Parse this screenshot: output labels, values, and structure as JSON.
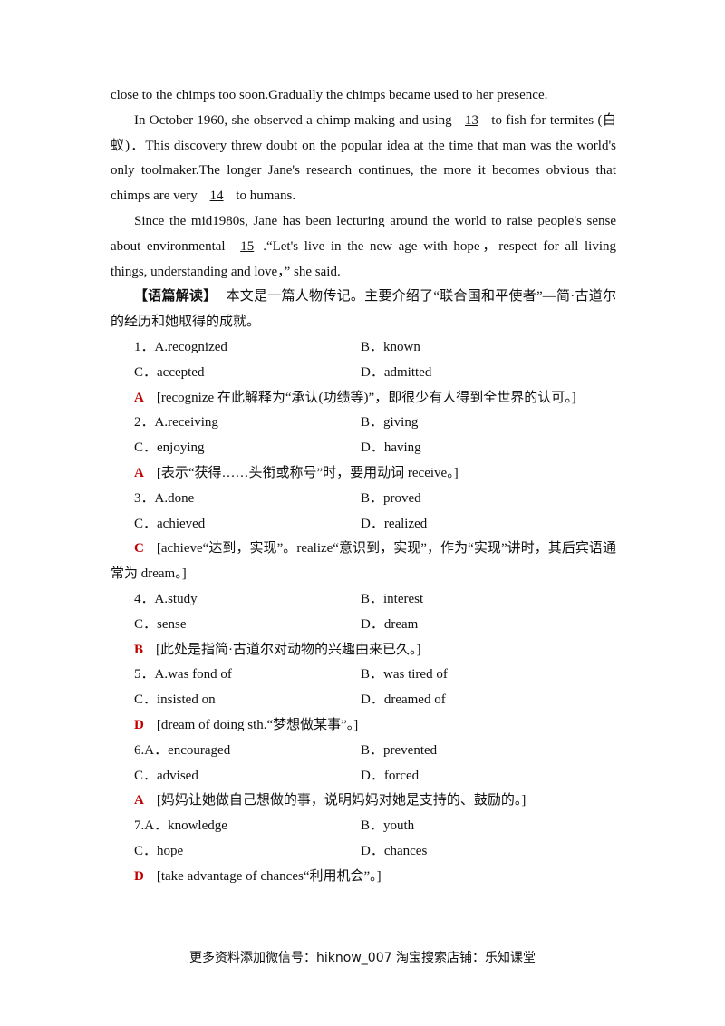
{
  "passage": [
    {
      "parts": [
        "close to the chimps too soon.Gradually the chimps became used to her presence."
      ]
    },
    {
      "parts": [
        "In October 1960, she observed a chimp making and using ",
        "13",
        " to fish for termites (白蚁)．This discovery threw doubt on the popular idea at the time that man was the world's only toolmaker.The longer Jane's research continues, the more it becomes obvious that chimps are very ",
        "14",
        " to humans."
      ]
    },
    {
      "parts": [
        "Since the mid1980s, Jane has been lecturing around the world to raise people's sense about environmental ",
        "15",
        ".“Let's live in the new age with hope，respect for all living things, understanding and love，” she said."
      ]
    }
  ],
  "note": {
    "label": "【语篇解读】",
    "text": "本文是一篇人物传记。主要介绍了“联合国和平使者”—简·古道尔的经历和她取得的成就。"
  },
  "questions": [
    {
      "number": "1．",
      "options": [
        "A.recognized",
        "B．known",
        "C．accepted",
        "D．admitted"
      ],
      "answer": "A",
      "explanation": "[recognize 在此解释为“承认(功绩等)”，即很少有人得到全世界的认可。]"
    },
    {
      "number": "2．",
      "options": [
        "A.receiving",
        "B．giving",
        "C．enjoying",
        "D．having"
      ],
      "answer": "A",
      "explanation": "[表示“获得……头衔或称号”时，要用动词 receive。]"
    },
    {
      "number": "3．",
      "options": [
        "A.done",
        "B．proved",
        "C．achieved",
        "D．realized"
      ],
      "answer": "C",
      "explanation": "[achieve“达到，实现”。realize“意识到，实现”，作为“实现”讲时，其后宾语通常为 dream。]"
    },
    {
      "number": "4．",
      "options": [
        "A.study",
        "B．interest",
        "C．sense",
        "D．dream"
      ],
      "answer": "B",
      "explanation": "[此处是指简·古道尔对动物的兴趣由来已久。]"
    },
    {
      "number": "5．",
      "options": [
        "A.was fond of",
        "B．was tired of",
        "C．insisted on",
        "D．dreamed of"
      ],
      "answer": "D",
      "explanation": "[dream of doing sth.“梦想做某事”。]"
    },
    {
      "number": "6.",
      "options": [
        "A．encouraged",
        "B．prevented",
        "C．advised",
        "D．forced"
      ],
      "answer": "A",
      "explanation": "[妈妈让她做自己想做的事，说明妈妈对她是支持的、鼓励的。]"
    },
    {
      "number": "7.",
      "options": [
        "A．knowledge",
        "B．youth",
        "C．hope",
        "D．chances"
      ],
      "answer": "D",
      "explanation": "[take advantage of chances“利用机会”。]"
    }
  ],
  "footer": "更多资料添加微信号：hiknow_007  淘宝搜索店铺：乐知课堂"
}
